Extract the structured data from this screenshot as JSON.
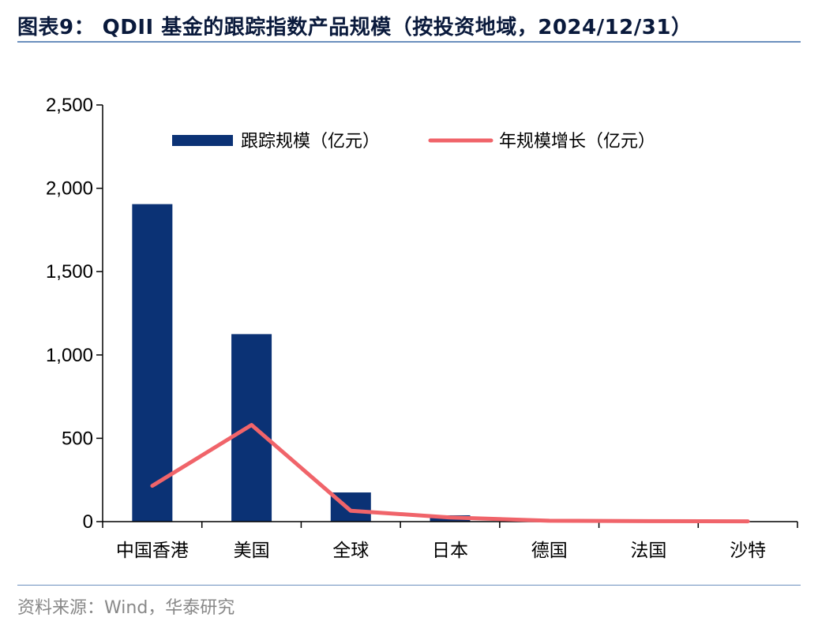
{
  "header": {
    "title": "图表9： QDII 基金的跟踪指数产品规模（按投资地域，2024/12/31）"
  },
  "footer": {
    "source": "资料来源：Wind，华泰研究"
  },
  "colors": {
    "bar": "#0b3275",
    "line": "#f0646a",
    "rule": "#6b8fbd"
  },
  "chart_data": {
    "type": "bar",
    "categories": [
      "中国香港",
      "美国",
      "全球",
      "日本",
      "德国",
      "法国",
      "沙特"
    ],
    "series": [
      {
        "name": "跟踪规模（亿元）",
        "type": "bar",
        "values": [
          1905,
          1125,
          175,
          38,
          3,
          2,
          1
        ]
      },
      {
        "name": "年规模增长（亿元）",
        "type": "line",
        "values": [
          215,
          580,
          65,
          25,
          5,
          3,
          2
        ]
      }
    ],
    "yticks": [
      "0",
      "500",
      "1,000",
      "1,500",
      "2,000",
      "2,500"
    ],
    "ylim": [
      0,
      2500
    ],
    "grid": false,
    "legend_position": "top"
  }
}
